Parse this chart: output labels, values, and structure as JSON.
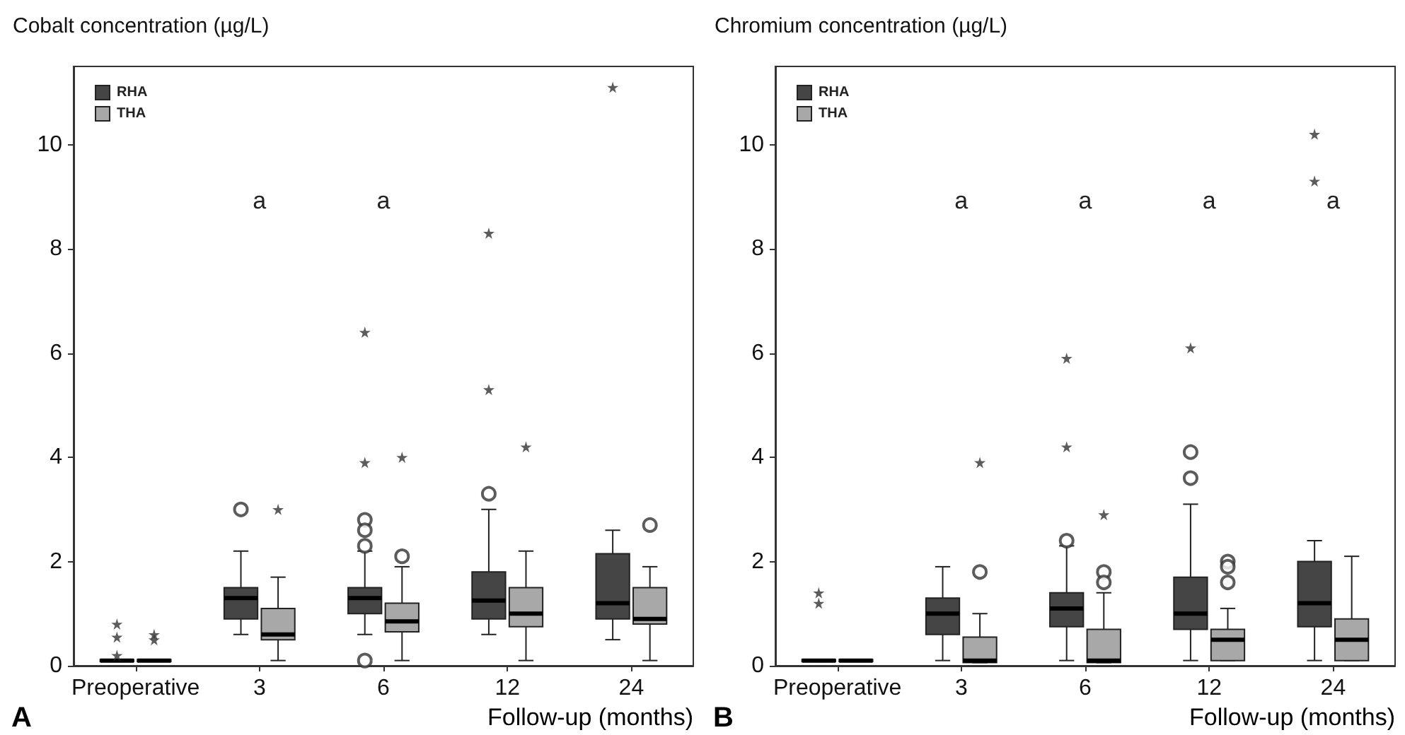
{
  "chart_data": [
    {
      "type": "box",
      "title": "Cobalt concentration (µg/L)",
      "xlabel": "Follow-up (months)",
      "categories": [
        "Preoperative",
        "3",
        "6",
        "12",
        "24"
      ],
      "ylim": [
        0,
        11.5
      ],
      "yticks": [
        0,
        2,
        4,
        6,
        8,
        10
      ],
      "legend": "top left",
      "grid": false,
      "series": [
        {
          "name": "RHA",
          "color": "#454545",
          "boxes": [
            {
              "low": 0.08,
              "q1": 0.08,
              "median": 0.1,
              "q3": 0.12,
              "high": 0.12
            },
            {
              "low": 0.6,
              "q1": 0.9,
              "median": 1.3,
              "q3": 1.5,
              "high": 2.2,
              "outliers": [
                3.0
              ]
            },
            {
              "low": 0.6,
              "q1": 1.0,
              "median": 1.3,
              "q3": 1.5,
              "high": 2.2,
              "outliers": [
                2.8,
                2.6,
                2.3,
                0.1
              ]
            },
            {
              "low": 0.6,
              "q1": 0.9,
              "median": 1.25,
              "q3": 1.8,
              "high": 3.0,
              "outliers": [
                3.3
              ]
            },
            {
              "low": 0.5,
              "q1": 0.9,
              "median": 1.2,
              "q3": 2.15,
              "high": 2.6
            }
          ]
        },
        {
          "type": "scatter",
          "marker": "star",
          "color": "#333333",
          "x": [
            "Preoperative",
            "Preoperative",
            "Preoperative",
            "6",
            "6",
            "12",
            "12",
            "24"
          ],
          "values": [
            0.8,
            0.55,
            0.2,
            3.9,
            6.4,
            8.3,
            5.3,
            11.1
          ]
        },
        {
          "name": "THA",
          "color": "#a8a8a8",
          "boxes": [
            {
              "low": 0.08,
              "q1": 0.08,
              "median": 0.1,
              "q3": 0.12,
              "high": 0.12
            },
            {
              "low": 0.1,
              "q1": 0.5,
              "median": 0.6,
              "q3": 1.1,
              "high": 1.7
            },
            {
              "low": 0.1,
              "q1": 0.65,
              "median": 0.85,
              "q3": 1.2,
              "high": 1.9,
              "outliers": [
                2.1
              ]
            },
            {
              "low": 0.1,
              "q1": 0.75,
              "median": 1.0,
              "q3": 1.5,
              "high": 2.2
            },
            {
              "low": 0.1,
              "q1": 0.8,
              "median": 0.9,
              "q3": 1.5,
              "high": 1.9,
              "outliers": [
                2.7
              ]
            }
          ]
        },
        {
          "type": "scatter",
          "marker": "star",
          "color": "#333333",
          "x": [
            "Preoperative",
            "Preoperative",
            "3",
            "6",
            "12"
          ],
          "values": [
            0.6,
            0.5,
            3.0,
            4.0,
            4.2
          ]
        }
      ],
      "annotations": [
        "a",
        "a",
        "A"
      ]
    },
    {
      "type": "box",
      "title": "Chromium concentration (µg/L)",
      "xlabel": "Follow-up (months)",
      "categories": [
        "Preoperative",
        "3",
        "6",
        "12",
        "24"
      ],
      "ylim": [
        0,
        11.5
      ],
      "yticks": [
        0,
        2,
        4,
        6,
        8,
        10
      ],
      "legend": "top left",
      "grid": false,
      "series": [
        {
          "name": "RHA",
          "color": "#454545",
          "boxes": [
            {
              "low": 0.08,
              "q1": 0.08,
              "median": 0.1,
              "q3": 0.12,
              "high": 0.12
            },
            {
              "low": 0.1,
              "q1": 0.6,
              "median": 1.0,
              "q3": 1.3,
              "high": 1.9
            },
            {
              "low": 0.1,
              "q1": 0.75,
              "median": 1.1,
              "q3": 1.4,
              "high": 2.3,
              "outliers": [
                2.4
              ]
            },
            {
              "low": 0.1,
              "q1": 0.7,
              "median": 1.0,
              "q3": 1.7,
              "high": 3.1,
              "outliers": [
                4.1,
                3.6
              ]
            },
            {
              "low": 0.1,
              "q1": 0.75,
              "median": 1.2,
              "q3": 2.0,
              "high": 2.4
            }
          ]
        },
        {
          "type": "scatter",
          "marker": "star",
          "color": "#333333",
          "x": [
            "Preoperative",
            "Preoperative",
            "6",
            "6",
            "12",
            "24",
            "24"
          ],
          "values": [
            1.4,
            1.2,
            4.2,
            5.9,
            6.1,
            10.2,
            9.3
          ]
        },
        {
          "name": "THA",
          "color": "#a8a8a8",
          "boxes": [
            {
              "low": 0.08,
              "q1": 0.08,
              "median": 0.1,
              "q3": 0.12,
              "high": 0.12
            },
            {
              "low": 0.06,
              "q1": 0.06,
              "median": 0.1,
              "q3": 0.55,
              "high": 1.0,
              "outliers": [
                1.8
              ]
            },
            {
              "low": 0.06,
              "q1": 0.06,
              "median": 0.1,
              "q3": 0.7,
              "high": 1.4,
              "outliers": [
                1.8,
                1.6
              ]
            },
            {
              "low": 0.1,
              "q1": 0.1,
              "median": 0.5,
              "q3": 0.7,
              "high": 1.1,
              "outliers": [
                2.0,
                1.9,
                1.6
              ]
            },
            {
              "low": 0.1,
              "q1": 0.1,
              "median": 0.5,
              "q3": 0.9,
              "high": 2.1
            }
          ]
        },
        {
          "type": "scatter",
          "marker": "star",
          "color": "#333333",
          "x": [
            "3",
            "6"
          ],
          "values": [
            3.9,
            2.9
          ]
        }
      ],
      "annotations": [
        "a",
        "a",
        "a",
        "a",
        "B"
      ]
    }
  ]
}
